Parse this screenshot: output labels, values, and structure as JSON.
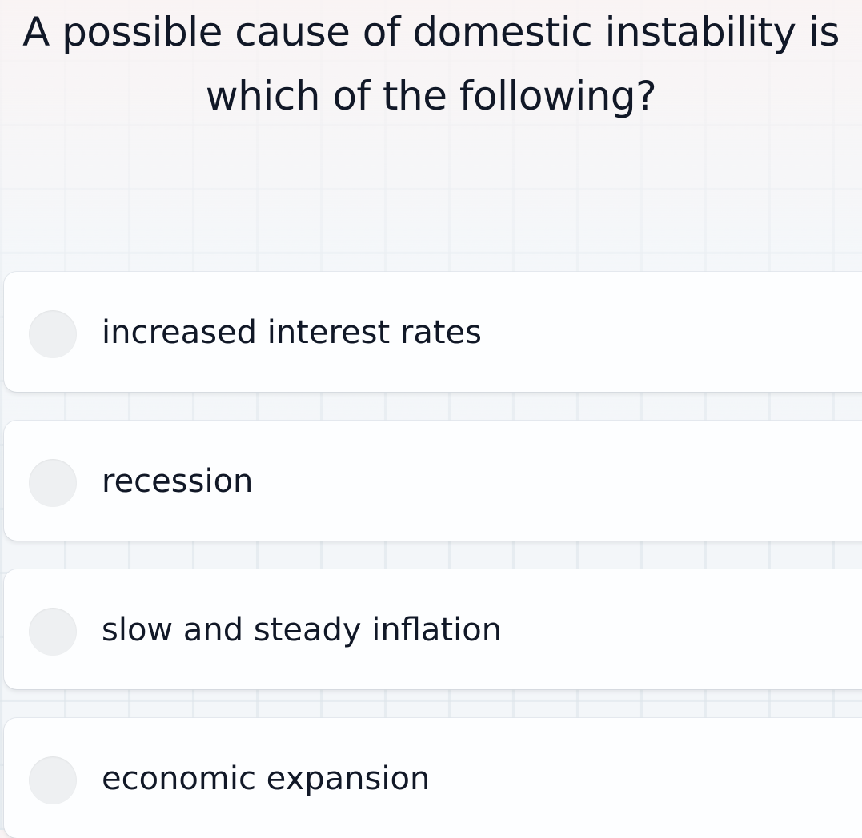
{
  "question": "A possible cause of domestic instability is which of the following?",
  "options": [
    {
      "label": "increased interest rates",
      "selected": false
    },
    {
      "label": "recession",
      "selected": false
    },
    {
      "label": "slow and steady inflation",
      "selected": false
    },
    {
      "label": "economic expansion",
      "selected": false
    }
  ]
}
